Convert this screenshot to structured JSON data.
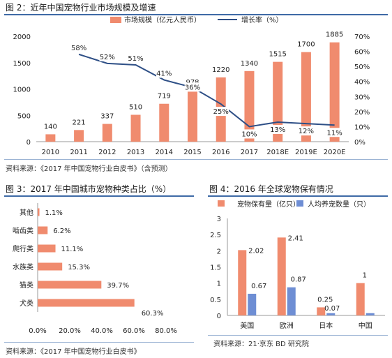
{
  "figure2": {
    "title": "图 2：近年中国宠物行业市场规模及增速",
    "source": "资料来源：《2017 年中国宠物行业白皮书》（含预测）"
  },
  "figure3": {
    "title": "图 3：2017 年中国城市宠物种类占比（%）",
    "source": "资料来源：《2017 年中国宠物行业白皮书》"
  },
  "figure4": {
    "title": "图 4：2016 年全球宠物保有情况",
    "source": "资料来源：21·京东 BD 研究院"
  },
  "colors": {
    "bar": "#f08b6e",
    "line": "#2e4f86",
    "bar_blue": "#6e8ed4",
    "rule": "#3e6aa6"
  },
  "chart_data": [
    {
      "type": "bar",
      "categories": [
        "2010",
        "2011",
        "2012",
        "2013",
        "2014",
        "2015",
        "2016",
        "2017",
        "2018E",
        "2019E",
        "2020E"
      ],
      "series": [
        {
          "name": "市场规模（亿元人民币）",
          "type": "bar",
          "axis": "left",
          "values": [
            140,
            221,
            337,
            510,
            719,
            978,
            1220,
            1340,
            1515,
            1700,
            1885
          ],
          "labels": [
            "140",
            "221",
            "337",
            "510",
            "719",
            "978",
            "1220",
            "1340",
            "1515",
            "1700",
            "1885"
          ]
        },
        {
          "name": "增长率（%）",
          "type": "line",
          "axis": "right",
          "values": [
            null,
            58,
            52,
            51,
            41,
            36,
            25,
            10,
            13,
            12,
            11
          ],
          "labels": [
            "",
            "58%",
            "52%",
            "51%",
            "41%",
            "36%",
            "25%",
            "10%",
            "13%",
            "12%",
            "11%"
          ]
        }
      ],
      "ylim_left": [
        0,
        2000
      ],
      "yticks_left": [
        "0",
        "500",
        "1000",
        "1500",
        "2000"
      ],
      "ylim_right": [
        0,
        70
      ],
      "yticks_right": [
        "0%",
        "10%",
        "20%",
        "30%",
        "40%",
        "50%",
        "60%",
        "70%"
      ],
      "legend": "top"
    },
    {
      "type": "bar",
      "orientation": "horizontal",
      "categories": [
        "犬类",
        "猫类",
        "水族类",
        "爬行类",
        "啮齿类",
        "其他"
      ],
      "values": [
        60.3,
        39.7,
        15.3,
        11.1,
        6.2,
        1.1
      ],
      "labels": [
        "60.3%",
        "39.7%",
        "15.3%",
        "11.1%",
        "6.2%",
        "1.1%"
      ],
      "xlim": [
        0,
        80
      ],
      "xticks": [
        "0.0%",
        "20.0%",
        "40.0%",
        "60.0%",
        "80.0%"
      ]
    },
    {
      "type": "bar",
      "categories": [
        "美国",
        "欧洲",
        "日本",
        "中国"
      ],
      "series": [
        {
          "name": "宠物保有量（亿只）",
          "values": [
            2.02,
            2.41,
            0.25,
            1
          ],
          "labels": [
            "2.02",
            "2.41",
            "0.25",
            "1"
          ]
        },
        {
          "name": "人均养宠数量（只）",
          "values": [
            0.67,
            0.87,
            0.07,
            0.07
          ],
          "labels": [
            "0.67",
            "0.87",
            "0.07",
            ""
          ]
        }
      ],
      "ylim": [
        0,
        3
      ],
      "yticks": [
        "0",
        "0.5",
        "1",
        "1.5",
        "2",
        "2.5",
        "3"
      ],
      "legend": "top"
    }
  ]
}
